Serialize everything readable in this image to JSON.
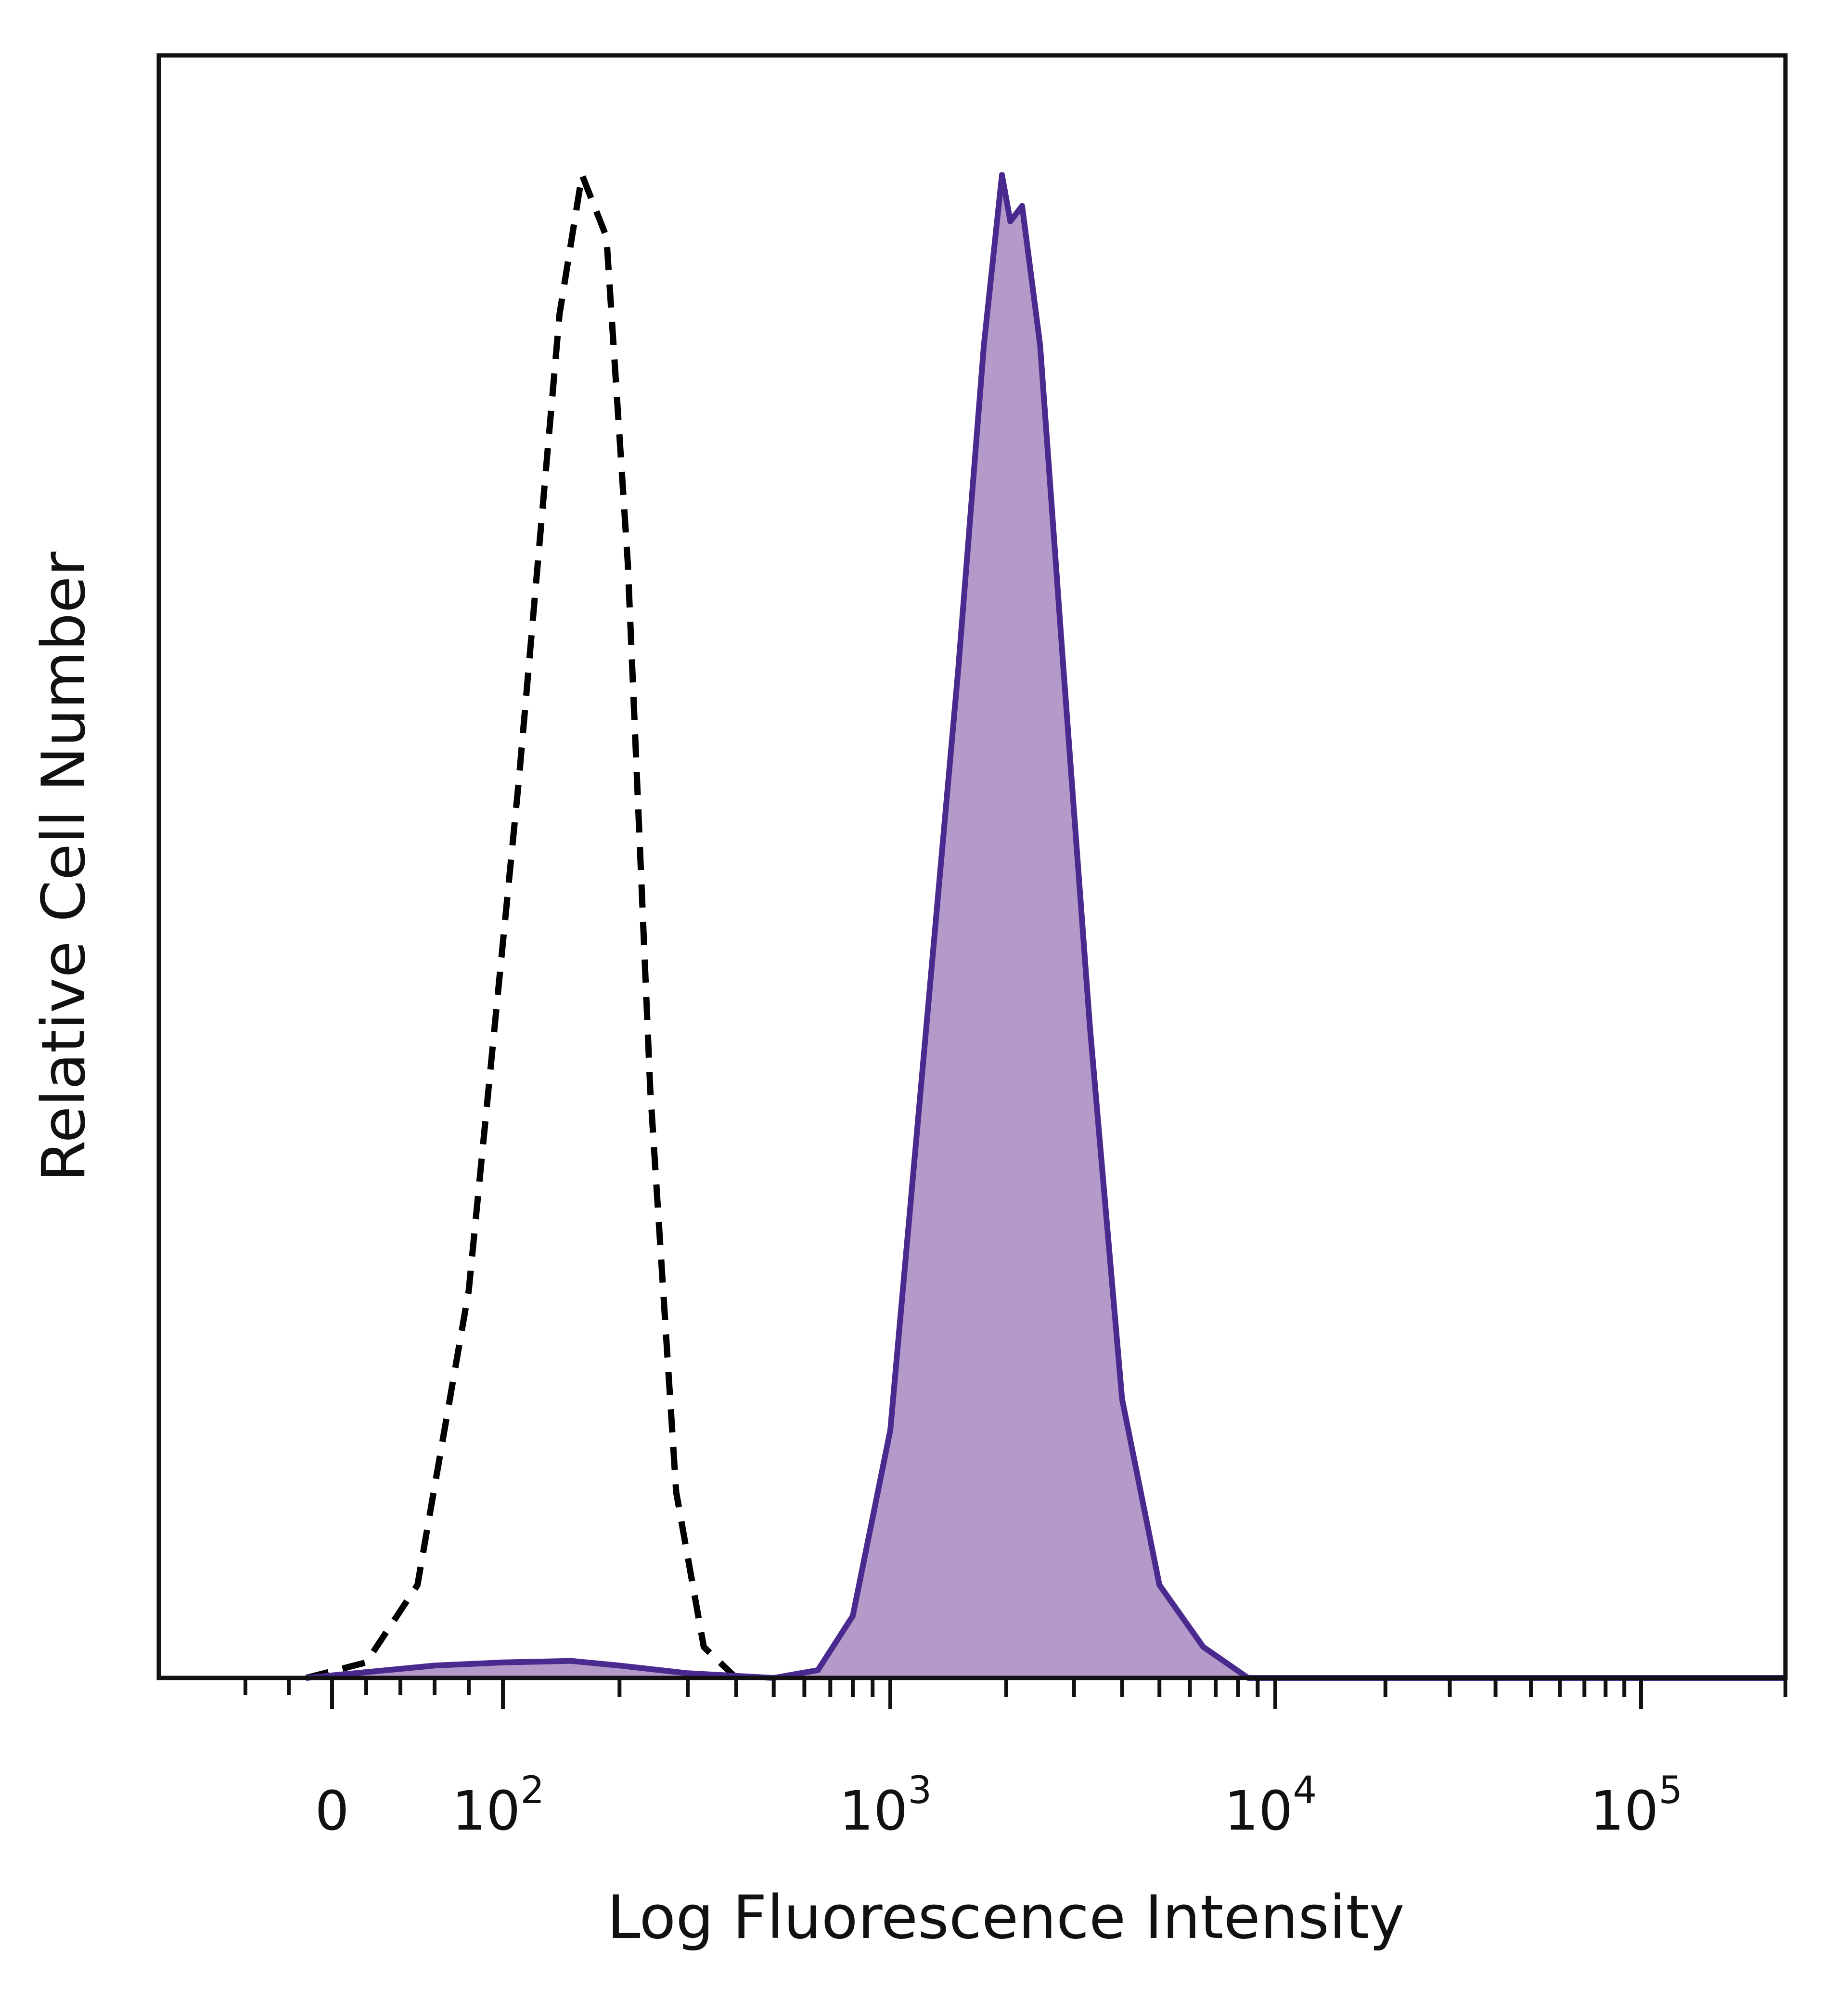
{
  "chart_data": {
    "type": "area",
    "xlabel": "Log Fluorescence Intensity",
    "ylabel": "Relative Cell Number",
    "x_scale": "biexponential",
    "x_tick_labels": [
      {
        "value": 0,
        "label": "0",
        "exp": ""
      },
      {
        "value": 100,
        "label": "10",
        "exp": "2"
      },
      {
        "value": 1000,
        "label": "10",
        "exp": "3"
      },
      {
        "value": 10000,
        "label": "10",
        "exp": "4"
      },
      {
        "value": 100000,
        "label": "10",
        "exp": "5"
      }
    ],
    "xlim": [
      -200,
      200000
    ],
    "ylim": [
      0,
      100
    ],
    "grid": false,
    "legend": "none",
    "series": [
      {
        "style": "dashed-outline",
        "color": "#000000",
        "fill": "none",
        "points": [
          [
            -30,
            0
          ],
          [
            20,
            1
          ],
          [
            50,
            6
          ],
          [
            80,
            25
          ],
          [
            110,
            58
          ],
          [
            140,
            88
          ],
          [
            160,
            97
          ],
          [
            185,
            93
          ],
          [
            210,
            72
          ],
          [
            240,
            38
          ],
          [
            280,
            12
          ],
          [
            330,
            2
          ],
          [
            400,
            0
          ]
        ]
      },
      {
        "style": "filled",
        "color": "#4b2a8f",
        "fill": "#b39ac9",
        "points": [
          [
            -30,
            0
          ],
          [
            60,
            0.8
          ],
          [
            100,
            1.0
          ],
          [
            150,
            1.1
          ],
          [
            200,
            0.8
          ],
          [
            300,
            0.3
          ],
          [
            500,
            0
          ],
          [
            650,
            0.5
          ],
          [
            800,
            4
          ],
          [
            1000,
            16
          ],
          [
            1200,
            38
          ],
          [
            1500,
            65
          ],
          [
            1750,
            86
          ],
          [
            1950,
            97
          ],
          [
            2050,
            94
          ],
          [
            2200,
            95
          ],
          [
            2450,
            86
          ],
          [
            2800,
            66
          ],
          [
            3300,
            42
          ],
          [
            4000,
            18
          ],
          [
            5000,
            6
          ],
          [
            6500,
            2
          ],
          [
            8500,
            0
          ],
          [
            200000,
            0
          ]
        ]
      }
    ]
  }
}
